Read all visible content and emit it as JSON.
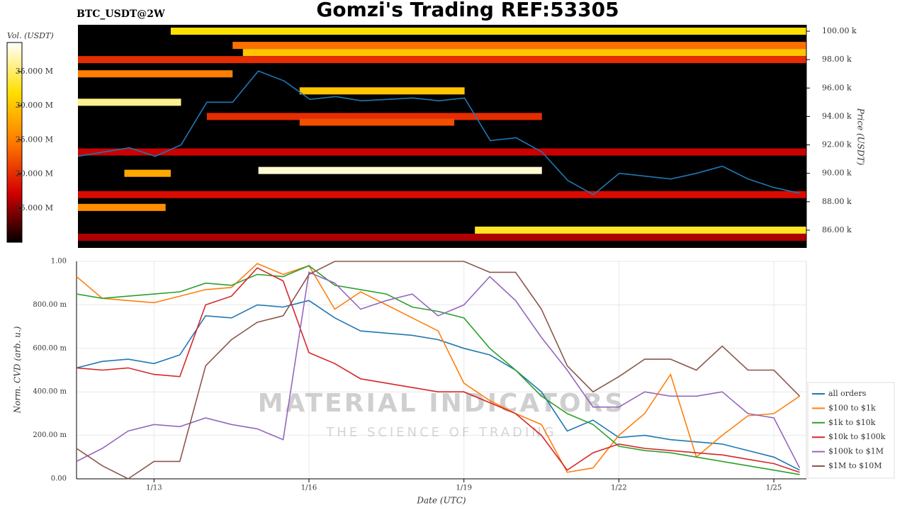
{
  "title": "Gomzi's Trading REF:53305",
  "watermark": {
    "title": "MATERIAL INDICATORS",
    "subtitle": "THE SCIENCE OF TRADING"
  },
  "chart_data": [
    {
      "type": "heatmap",
      "title": "BTC_USDT@2W",
      "ylabel": "Price (USDT)",
      "colorbar_label": "Vol. (USDT)",
      "xlim": [
        11.5,
        25.63
      ],
      "ylim": [
        84750,
        100450
      ],
      "yticks": [
        {
          "value": 86000,
          "label": "86.00 k"
        },
        {
          "value": 88000,
          "label": "88.00 k"
        },
        {
          "value": 90000,
          "label": "90.00 k"
        },
        {
          "value": 92000,
          "label": "92.00 k"
        },
        {
          "value": 94000,
          "label": "94.00 k"
        },
        {
          "value": 96000,
          "label": "96.00 k"
        },
        {
          "value": 98000,
          "label": "98.00 k"
        },
        {
          "value": 100000,
          "label": "100.00 k"
        }
      ],
      "clim": [
        10000000,
        39250000
      ],
      "cticks": [
        {
          "value": 15000000,
          "label": "15.000 M"
        },
        {
          "value": 20000000,
          "label": "20.000 M"
        },
        {
          "value": 25000000,
          "label": "25.000 M"
        },
        {
          "value": 30000000,
          "label": "30.000 M"
        },
        {
          "value": 35000000,
          "label": "35.000 M"
        }
      ],
      "colormap": [
        "#000000",
        "#d40000",
        "#ff7a00",
        "#ffe000",
        "#ffffff"
      ],
      "levels": [
        {
          "y": 100000,
          "x0": 13.3,
          "x1": 25.63,
          "value": 32000000
        },
        {
          "y": 99000,
          "x0": 14.5,
          "x1": 25.63,
          "value": 24000000
        },
        {
          "y": 98500,
          "x0": 14.7,
          "x1": 25.63,
          "value": 30000000
        },
        {
          "y": 98000,
          "x0": 11.5,
          "x1": 25.63,
          "value": 20000000
        },
        {
          "y": 97000,
          "x0": 11.5,
          "x1": 14.5,
          "value": 25000000
        },
        {
          "y": 95800,
          "x0": 15.8,
          "x1": 19.0,
          "value": 30000000
        },
        {
          "y": 95000,
          "x0": 11.5,
          "x1": 13.5,
          "value": 36000000
        },
        {
          "y": 94000,
          "x0": 14.0,
          "x1": 20.5,
          "value": 20000000
        },
        {
          "y": 93600,
          "x0": 15.8,
          "x1": 18.8,
          "value": 22000000
        },
        {
          "y": 91500,
          "x0": 11.5,
          "x1": 25.63,
          "value": 17000000
        },
        {
          "y": 90200,
          "x0": 15.0,
          "x1": 20.5,
          "value": 38000000
        },
        {
          "y": 90000,
          "x0": 12.4,
          "x1": 13.3,
          "value": 28000000
        },
        {
          "y": 88500,
          "x0": 11.5,
          "x1": 25.63,
          "value": 18000000
        },
        {
          "y": 87600,
          "x0": 11.5,
          "x1": 13.2,
          "value": 26000000
        },
        {
          "y": 86000,
          "x0": 19.2,
          "x1": 25.63,
          "value": 33000000
        },
        {
          "y": 85500,
          "x0": 11.5,
          "x1": 25.63,
          "value": 16000000
        }
      ],
      "x": [
        11.5,
        12,
        12.5,
        13,
        13.5,
        14,
        14.5,
        15,
        15.5,
        16,
        16.5,
        17,
        17.5,
        18,
        18.5,
        19,
        19.5,
        20,
        20.5,
        21,
        21.5,
        22,
        22.5,
        23,
        23.5,
        24,
        24.5,
        25,
        25.5
      ],
      "price": [
        91200,
        91500,
        91800,
        91200,
        92000,
        95000,
        95000,
        97200,
        96500,
        95200,
        95400,
        95100,
        95200,
        95300,
        95100,
        95300,
        92300,
        92500,
        91500,
        89500,
        88500,
        90000,
        89800,
        89600,
        90000,
        90500,
        89600,
        89000,
        88600
      ],
      "price_color": "#1f77b4"
    },
    {
      "type": "line",
      "xlabel": "Date (UTC)",
      "ylabel": "Norm. CVD (arb. u.)",
      "xlim": [
        11.5,
        25.63
      ],
      "ylim": [
        0,
        1
      ],
      "xticks": [
        {
          "value": 13,
          "label": "1/13"
        },
        {
          "value": 16,
          "label": "1/16"
        },
        {
          "value": 19,
          "label": "1/19"
        },
        {
          "value": 22,
          "label": "1/22"
        },
        {
          "value": 25,
          "label": "1/25"
        }
      ],
      "yticks": [
        {
          "value": 0,
          "label": "0.00"
        },
        {
          "value": 0.2,
          "label": "200.00 m"
        },
        {
          "value": 0.4,
          "label": "400.00 m"
        },
        {
          "value": 0.6,
          "label": "600.00 m"
        },
        {
          "value": 0.8,
          "label": "800.00 m"
        },
        {
          "value": 1,
          "label": "1.00"
        }
      ],
      "grid": true,
      "x": [
        11.5,
        12,
        12.5,
        13,
        13.5,
        14,
        14.5,
        15,
        15.5,
        16,
        16.5,
        17,
        17.5,
        18,
        18.5,
        19,
        19.5,
        20,
        20.5,
        21,
        21.5,
        22,
        22.5,
        23,
        23.5,
        24,
        24.5,
        25,
        25.5
      ],
      "series": [
        {
          "name": "all orders",
          "color": "#1f77b4",
          "values": [
            0.51,
            0.54,
            0.55,
            0.53,
            0.57,
            0.75,
            0.74,
            0.8,
            0.79,
            0.82,
            0.74,
            0.68,
            0.67,
            0.66,
            0.64,
            0.6,
            0.57,
            0.5,
            0.4,
            0.22,
            0.27,
            0.19,
            0.2,
            0.18,
            0.17,
            0.16,
            0.13,
            0.1,
            0.04
          ]
        },
        {
          "name": "$100 to $1k",
          "color": "#ff7f0e",
          "values": [
            0.93,
            0.83,
            0.82,
            0.81,
            0.84,
            0.87,
            0.88,
            0.99,
            0.94,
            0.98,
            0.78,
            0.86,
            0.8,
            0.74,
            0.68,
            0.44,
            0.36,
            0.3,
            0.25,
            0.03,
            0.05,
            0.2,
            0.3,
            0.48,
            0.1,
            0.2,
            0.29,
            0.3,
            0.38
          ]
        },
        {
          "name": "$1k to $10k",
          "color": "#2ca02c",
          "values": [
            0.85,
            0.83,
            0.84,
            0.85,
            0.86,
            0.9,
            0.89,
            0.94,
            0.93,
            0.98,
            0.89,
            0.87,
            0.85,
            0.79,
            0.77,
            0.74,
            0.6,
            0.5,
            0.38,
            0.3,
            0.25,
            0.15,
            0.13,
            0.12,
            0.1,
            0.08,
            0.06,
            0.04,
            0.02
          ]
        },
        {
          "name": "$10k to $100k",
          "color": "#d62728",
          "values": [
            0.51,
            0.5,
            0.51,
            0.48,
            0.47,
            0.8,
            0.84,
            0.97,
            0.91,
            0.58,
            0.53,
            0.46,
            0.44,
            0.42,
            0.4,
            0.4,
            0.35,
            0.3,
            0.2,
            0.04,
            0.12,
            0.16,
            0.14,
            0.13,
            0.12,
            0.11,
            0.09,
            0.07,
            0.03
          ]
        },
        {
          "name": "$100k to $1M",
          "color": "#9467bd",
          "values": [
            0.08,
            0.14,
            0.22,
            0.25,
            0.24,
            0.28,
            0.25,
            0.23,
            0.18,
            0.95,
            0.9,
            0.78,
            0.82,
            0.85,
            0.75,
            0.8,
            0.93,
            0.82,
            0.65,
            0.5,
            0.33,
            0.33,
            0.4,
            0.38,
            0.38,
            0.4,
            0.3,
            0.28,
            0.05
          ]
        },
        {
          "name": "$1M to $10M",
          "color": "#8c564b",
          "values": [
            0.14,
            0.06,
            0.0,
            0.08,
            0.08,
            0.52,
            0.64,
            0.72,
            0.75,
            0.94,
            1.0,
            1.0,
            1.0,
            1.0,
            1.0,
            1.0,
            0.95,
            0.95,
            0.78,
            0.52,
            0.4,
            0.47,
            0.55,
            0.55,
            0.5,
            0.61,
            0.5,
            0.5,
            0.38
          ]
        }
      ]
    }
  ]
}
